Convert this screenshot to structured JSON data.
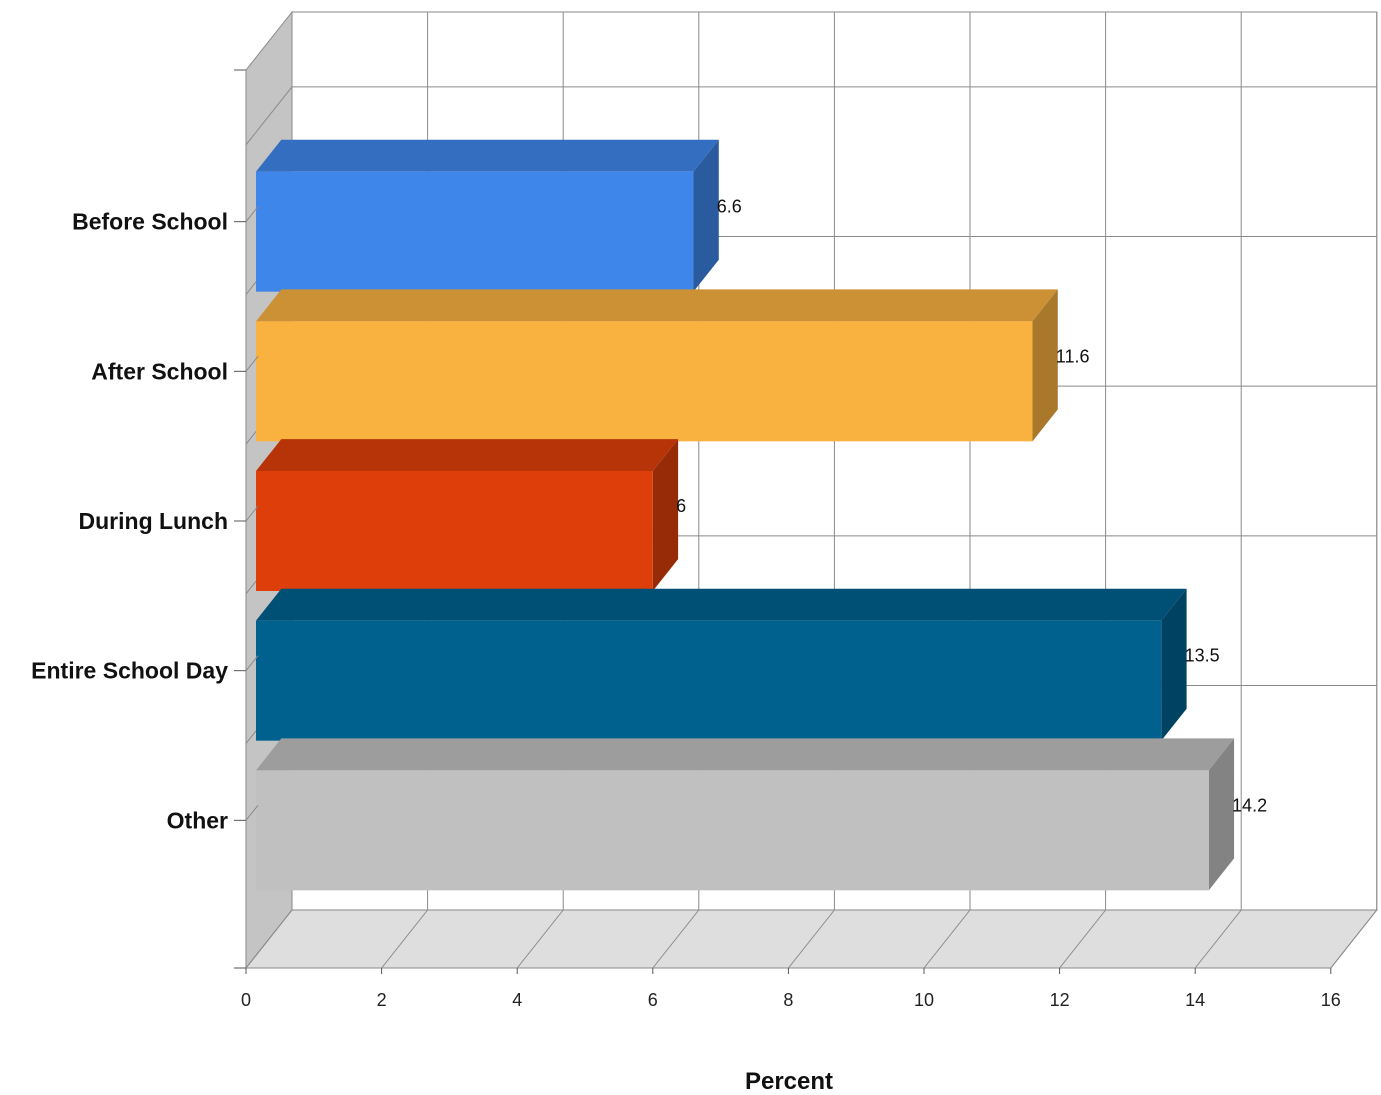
{
  "chart_data": {
    "type": "bar",
    "orientation": "horizontal",
    "three_d": true,
    "categories": [
      "Before School",
      "After School",
      "During Lunch",
      "Entire School Day",
      "Other"
    ],
    "values": [
      6.6,
      11.6,
      6,
      13.5,
      14.2
    ],
    "data_labels": [
      "6.6",
      "11.6",
      "6",
      "13.5",
      "14.2"
    ],
    "colors": [
      "#3f86ea",
      "#f9b13f",
      "#de3f0a",
      "#00618f",
      "#c0c0c0"
    ],
    "xlabel": "Percent",
    "ylabel": "",
    "xlim": [
      0,
      16
    ],
    "xticks": [
      0,
      2,
      4,
      6,
      8,
      10,
      12,
      14,
      16
    ],
    "tick_labels": [
      "0",
      "2",
      "4",
      "6",
      "8",
      "10",
      "12",
      "14",
      "16"
    ],
    "grid": true,
    "legend": "none"
  }
}
